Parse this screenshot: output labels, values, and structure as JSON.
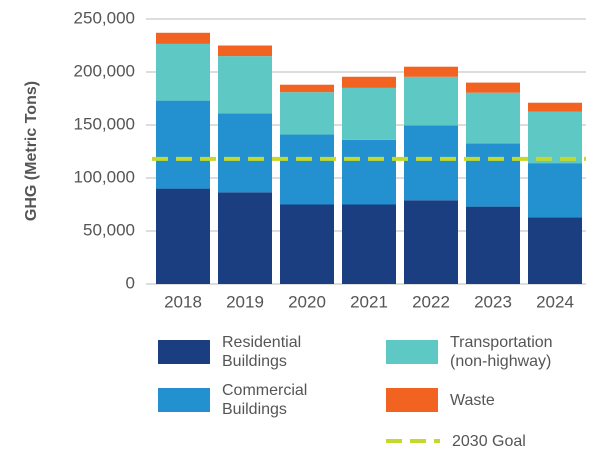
{
  "chart_data": {
    "type": "bar",
    "stacked": true,
    "y_label": "GHG (Metric Tons)",
    "categories": [
      "2018",
      "2019",
      "2020",
      "2021",
      "2022",
      "2023",
      "2024"
    ],
    "series": [
      {
        "name": "Residential Buildings",
        "color": "#1a3e7f",
        "values": [
          90000,
          86500,
          75000,
          75000,
          79000,
          73000,
          63000
        ]
      },
      {
        "name": "Commercial Buildings",
        "color": "#2390cf",
        "values": [
          83000,
          74500,
          66000,
          61000,
          70500,
          59500,
          51000
        ]
      },
      {
        "name": "Transportation (non-highway)",
        "color": "#5ec8c4",
        "values": [
          53500,
          54000,
          40000,
          49000,
          46000,
          48000,
          48500
        ]
      },
      {
        "name": "Waste",
        "color": "#f26322",
        "values": [
          10500,
          10000,
          7000,
          10500,
          9500,
          9500,
          8500
        ]
      }
    ],
    "goal": {
      "name": "2030 Goal",
      "value": 118000,
      "color": "#c5d92d"
    },
    "ylim": [
      0,
      250000
    ],
    "yticks": [
      0,
      {
        "value": 50000,
        "label": "50,000"
      },
      {
        "value": 100000,
        "label": "100,000"
      },
      {
        "value": 150000,
        "label": "150,000"
      },
      {
        "value": 200000,
        "label": "200,000"
      },
      {
        "value": 250000,
        "label": "250,000"
      }
    ],
    "grid": true
  }
}
